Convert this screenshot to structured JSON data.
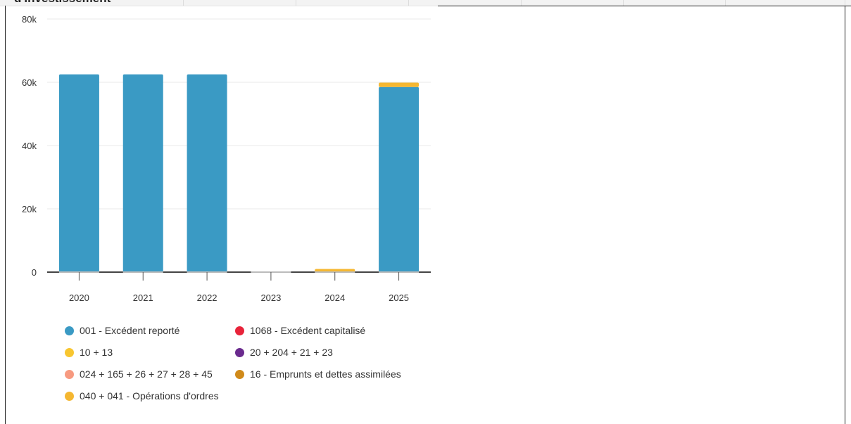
{
  "header": {
    "clipped_title": "d'investissement"
  },
  "colors": {
    "grid": "#e8e8e8",
    "axis": "#555555",
    "text": "#333333"
  },
  "chart_data": {
    "type": "bar",
    "stacked": true,
    "categories": [
      "2020",
      "2021",
      "2022",
      "2023",
      "2024",
      "2025"
    ],
    "ylim": [
      0,
      80000
    ],
    "y_ticks": [
      {
        "value": 0,
        "label": "0"
      },
      {
        "value": 20000,
        "label": "20k"
      },
      {
        "value": 40000,
        "label": "40k"
      },
      {
        "value": 60000,
        "label": "60k"
      },
      {
        "value": 80000,
        "label": "80k"
      }
    ],
    "grid": true,
    "legend_position": "bottom",
    "series": [
      {
        "name": "001 - Excédent reporté",
        "color": "#3a9ac4",
        "values": [
          62500,
          62500,
          62500,
          0,
          0,
          58500
        ]
      },
      {
        "name": "1068 - Excédent capitalisé",
        "color": "#e8233a",
        "values": [
          0,
          0,
          0,
          0,
          0,
          0
        ]
      },
      {
        "name": "10 + 13",
        "color": "#f8c630",
        "values": [
          0,
          0,
          0,
          0,
          0,
          0
        ]
      },
      {
        "name": "20 + 204 + 21 + 23",
        "color": "#6a2a8e",
        "values": [
          0,
          0,
          0,
          0,
          0,
          0
        ]
      },
      {
        "name": "024 + 165 + 26 + 27 + 28 + 45",
        "color": "#f79a80",
        "values": [
          0,
          0,
          0,
          0,
          0,
          0
        ]
      },
      {
        "name": "16 - Emprunts et dettes assimilées",
        "color": "#d08a1a",
        "values": [
          0,
          0,
          0,
          0,
          0,
          0
        ]
      },
      {
        "name": "040 + 041 - Opérations d'ordres",
        "color": "#f5b731",
        "values": [
          0,
          0,
          0,
          0,
          1000,
          1400
        ]
      }
    ]
  }
}
